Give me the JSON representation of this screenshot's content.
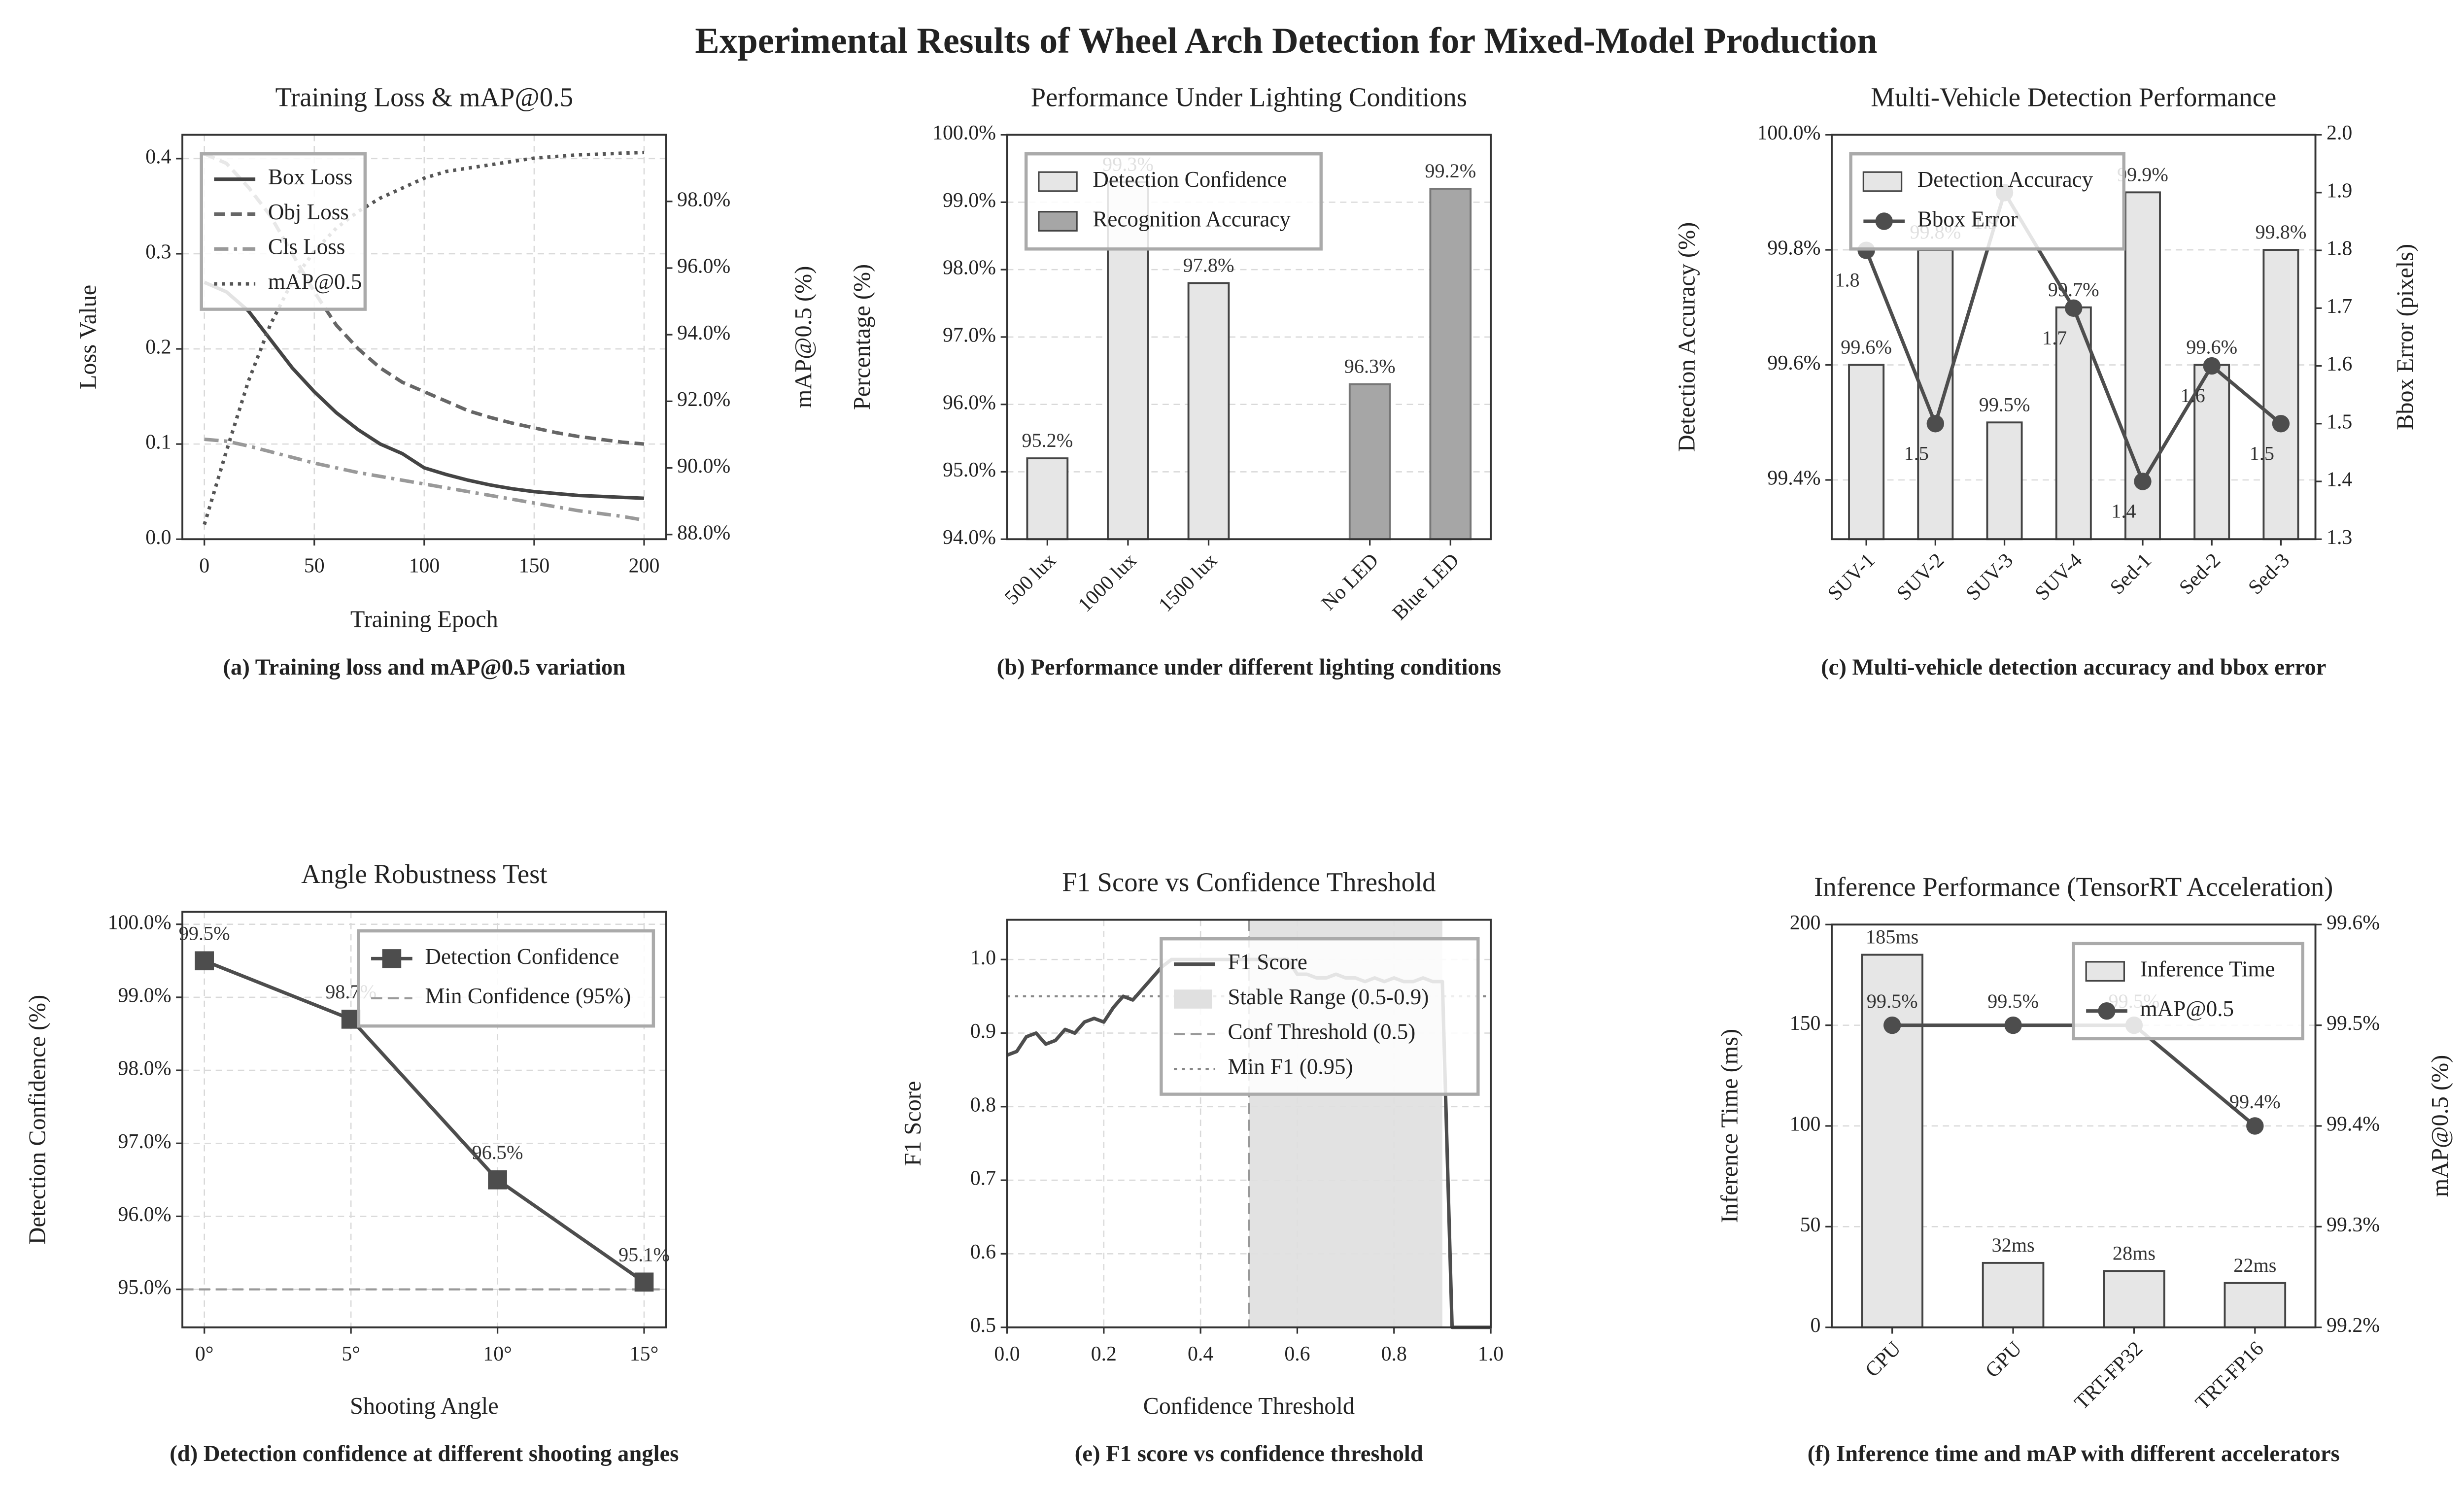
{
  "title": "Experimental Results of Wheel Arch Detection for Mixed-Model Production",
  "chart_data": [
    {
      "type": "line",
      "title": "Training Loss & mAP@0.5",
      "caption": "(a) Training loss and mAP@0.5 variation",
      "xlabel": "Training Epoch",
      "ylabel": "Loss Value",
      "y2label": "mAP@0.5 (%)",
      "x": [
        0,
        10,
        20,
        30,
        40,
        50,
        60,
        70,
        80,
        90,
        100,
        110,
        120,
        130,
        140,
        150,
        160,
        170,
        180,
        190,
        200
      ],
      "xlim": [
        -10,
        210
      ],
      "xticks": [
        0,
        50,
        100,
        150,
        200
      ],
      "ylim": [
        0,
        0.425
      ],
      "yticks": [
        {
          "value": 0,
          "label": "0.0"
        },
        0.1,
        0.2,
        0.3,
        0.4
      ],
      "y2lim": [
        87.86,
        100
      ],
      "y2ticks": [
        {
          "value": 88,
          "label": "88.0%"
        },
        {
          "value": 90,
          "label": "90.0%"
        },
        {
          "value": 92,
          "label": "92.0%"
        },
        {
          "value": 94,
          "label": "94.0%"
        },
        {
          "value": 96,
          "label": "96.0%"
        },
        {
          "value": 98,
          "label": "98.0%"
        }
      ],
      "grid": true,
      "legend": "upper left",
      "series": [
        {
          "name": "Box Loss",
          "color": "#444444",
          "linestyle": "solid",
          "values": [
            0.27,
            0.26,
            0.24,
            0.21,
            0.18,
            0.155,
            0.133,
            0.115,
            0.1,
            0.09,
            0.075,
            0.068,
            0.062,
            0.057,
            0.053,
            0.05,
            0.048,
            0.046,
            0.045,
            0.044,
            0.043
          ]
        },
        {
          "name": "Obj Loss",
          "color": "#666666",
          "linestyle": "dashed",
          "values": [
            0.405,
            0.395,
            0.37,
            0.34,
            0.3,
            0.26,
            0.225,
            0.2,
            0.18,
            0.165,
            0.155,
            0.145,
            0.135,
            0.128,
            0.122,
            0.117,
            0.112,
            0.108,
            0.105,
            0.102,
            0.1
          ]
        },
        {
          "name": "Cls Loss",
          "color": "#999999",
          "linestyle": "dashdot",
          "values": [
            0.105,
            0.103,
            0.098,
            0.092,
            0.086,
            0.08,
            0.075,
            0.07,
            0.066,
            0.062,
            0.058,
            0.054,
            0.05,
            0.046,
            0.042,
            0.038,
            0.034,
            0.03,
            0.027,
            0.024,
            0.02
          ]
        },
        {
          "name": "mAP@0.5",
          "color": "#555555",
          "linestyle": "dotted",
          "axis": "y2",
          "values": [
            88.3,
            90.5,
            92.6,
            94.3,
            95.6,
            96.5,
            97.2,
            97.7,
            98.1,
            98.4,
            98.7,
            98.9,
            99.0,
            99.1,
            99.2,
            99.3,
            99.35,
            99.4,
            99.42,
            99.45,
            99.47
          ]
        }
      ]
    },
    {
      "type": "bar",
      "title": "Performance Under Lighting Conditions",
      "caption": "(b) Performance under different lighting conditions",
      "ylabel": "Percentage (%)",
      "categories": [
        "500 lux",
        "1000 lux",
        "1500 lux",
        null,
        "No LED",
        "Blue LED"
      ],
      "ylim": [
        94,
        100
      ],
      "yticks": [
        {
          "value": 94,
          "label": "94.0%"
        },
        {
          "value": 95,
          "label": "95.0%"
        },
        {
          "value": 96,
          "label": "96.0%"
        },
        {
          "value": 97,
          "label": "97.0%"
        },
        {
          "value": 98,
          "label": "98.0%"
        },
        {
          "value": 99,
          "label": "99.0%"
        },
        {
          "value": 100,
          "label": "100.0%"
        }
      ],
      "grid": true,
      "legend": "upper left",
      "series": [
        {
          "name": "Detection Confidence",
          "color": "#e6e6e6",
          "values": [
            95.2,
            99.3,
            97.8,
            null,
            null,
            null
          ],
          "value_labels": [
            "95.2%",
            "99.3%",
            "97.8%",
            null,
            null,
            null
          ]
        },
        {
          "name": "Recognition Accuracy",
          "color": "#a6a6a6",
          "values": [
            null,
            null,
            null,
            null,
            96.3,
            99.2
          ],
          "value_labels": [
            null,
            null,
            null,
            null,
            "96.3%",
            "99.2%"
          ]
        }
      ]
    },
    {
      "type": "bar",
      "title": "Multi-Vehicle Detection Performance",
      "caption": "(c) Multi-vehicle detection accuracy and bbox error",
      "ylabel": "Detection Accuracy (%)",
      "y2label": "Bbox Error (pixels)",
      "categories": [
        "SUV-1",
        "SUV-2",
        "SUV-3",
        "SUV-4",
        "Sed-1",
        "Sed-2",
        "Sed-3"
      ],
      "ylim": [
        99.297,
        100
      ],
      "yticks": [
        {
          "value": 99.4,
          "label": "99.4%"
        },
        {
          "value": 99.6,
          "label": "99.6%"
        },
        {
          "value": 99.8,
          "label": "99.8%"
        },
        {
          "value": 100,
          "label": "100.0%"
        }
      ],
      "y2lim": [
        1.3,
        2.0
      ],
      "y2ticks": [
        1.3,
        1.4,
        1.5,
        1.6,
        1.7,
        1.8,
        1.9,
        {
          "value": 2,
          "label": "2.0"
        }
      ],
      "grid": true,
      "legend": "upper left",
      "series": [
        {
          "name": "Detection Accuracy",
          "color": "#e6e6e6",
          "values": [
            99.6,
            99.8,
            99.5,
            99.7,
            99.9,
            99.6,
            99.8
          ],
          "value_labels": [
            "99.6%",
            "99.8%",
            "99.5%",
            "99.7%",
            "99.9%",
            "99.6%",
            "99.8%"
          ]
        },
        {
          "name": "Bbox Error",
          "type": "line",
          "axis": "y2",
          "color": "#4d4d4d",
          "marker": "o",
          "linestyle": "solid",
          "data_labels": true,
          "values": [
            1.8,
            1.5,
            1.9,
            1.7,
            1.4,
            1.6,
            1.5
          ]
        }
      ]
    },
    {
      "type": "line",
      "title": "Angle Robustness Test",
      "caption": "(d) Detection confidence at different shooting angles",
      "xlabel": "Shooting Angle",
      "ylabel": "Detection Confidence (%)",
      "categories": [
        "0°",
        "5°",
        "10°",
        "15°"
      ],
      "ylim": [
        94.48,
        100.17
      ],
      "yticks": [
        {
          "value": 95,
          "label": "95.0%"
        },
        {
          "value": 96,
          "label": "96.0%"
        },
        {
          "value": 97,
          "label": "97.0%"
        },
        {
          "value": 98,
          "label": "98.0%"
        },
        {
          "value": 99,
          "label": "99.0%"
        },
        {
          "value": 100,
          "label": "100.0%"
        }
      ],
      "grid": true,
      "legend": "upper right",
      "series": [
        {
          "name": "Detection Confidence",
          "color": "#4d4d4d",
          "marker": "s",
          "linestyle": "solid",
          "values": [
            99.5,
            98.7,
            96.5,
            95.1
          ],
          "value_labels": [
            "99.5%",
            "98.7%",
            "96.5%",
            "95.1%"
          ]
        }
      ],
      "reference_lines": [
        {
          "name": "Min Confidence (95%)",
          "orientation": "h",
          "value": 95,
          "color": "#999999",
          "linestyle": "dashed"
        }
      ]
    },
    {
      "type": "line",
      "title": "F1 Score vs Confidence Threshold",
      "caption": "(e) F1 score vs confidence threshold",
      "xlabel": "Confidence Threshold",
      "ylabel": "F1 Score",
      "x": [
        0,
        0.02,
        0.04,
        0.06,
        0.08,
        0.1,
        0.12,
        0.14,
        0.16,
        0.18,
        0.2,
        0.22,
        0.24,
        0.26,
        0.28,
        0.3,
        0.32,
        0.34,
        0.36,
        0.38,
        0.4,
        0.42,
        0.44,
        0.46,
        0.48,
        0.5,
        0.52,
        0.54,
        0.56,
        0.58,
        0.6,
        0.62,
        0.64,
        0.66,
        0.68,
        0.7,
        0.72,
        0.74,
        0.76,
        0.78,
        0.8,
        0.82,
        0.84,
        0.86,
        0.88,
        0.9,
        0.92,
        0.94,
        0.96,
        0.98,
        1
      ],
      "xlim": [
        0,
        1
      ],
      "xticks": [
        {
          "value": 0,
          "label": "0.0"
        },
        0.2,
        0.4,
        0.6,
        0.8,
        {
          "value": 1,
          "label": "1.0"
        }
      ],
      "ylim": [
        0.5,
        1.054
      ],
      "yticks": [
        0.5,
        0.6,
        0.7,
        0.8,
        0.9,
        {
          "value": 1,
          "label": "1.0"
        }
      ],
      "grid": true,
      "legend": "upper right",
      "series": [
        {
          "name": "F1 Score",
          "color": "#4d4d4d",
          "linestyle": "solid",
          "values": [
            0.87,
            0.875,
            0.895,
            0.9,
            0.885,
            0.89,
            0.905,
            0.9,
            0.915,
            0.92,
            0.915,
            0.935,
            0.95,
            0.945,
            0.96,
            0.975,
            0.99,
            1,
            1,
            1,
            1,
            1,
            1,
            1,
            1,
            1,
            1,
            1,
            1,
            1,
            0.98,
            0.98,
            0.975,
            0.975,
            0.98,
            0.975,
            0.975,
            0.97,
            0.975,
            0.97,
            0.975,
            0.97,
            0.97,
            0.975,
            0.97,
            0.97,
            0.5,
            0.5,
            0.5,
            0.5,
            0.5
          ]
        }
      ],
      "spans": [
        {
          "name": "Stable Range (0.5-0.9)",
          "from": 0.5,
          "to": 0.9,
          "color": "#e0e0e0"
        }
      ],
      "reference_lines": [
        {
          "name": "Conf Threshold (0.5)",
          "orientation": "v",
          "value": 0.5,
          "color": "#999999",
          "linestyle": "dashed"
        },
        {
          "name": "Min F1 (0.95)",
          "orientation": "h",
          "value": 0.95,
          "color": "#888888",
          "linestyle": "dotted"
        }
      ]
    },
    {
      "type": "bar",
      "title": "Inference Performance (TensorRT Acceleration)",
      "caption": "(f) Inference time and mAP with different accelerators",
      "ylabel": "Inference Time (ms)",
      "y2label": "mAP@0.5 (%)",
      "categories": [
        "CPU",
        "GPU",
        "TRT-FP32",
        "TRT-FP16"
      ],
      "ylim": [
        0,
        200
      ],
      "yticks": [
        0,
        50,
        100,
        150,
        200
      ],
      "y2lim": [
        99.2,
        99.6
      ],
      "y2ticks": [
        {
          "value": 99.2,
          "label": "99.2%"
        },
        {
          "value": 99.3,
          "label": "99.3%"
        },
        {
          "value": 99.4,
          "label": "99.4%"
        },
        {
          "value": 99.5,
          "label": "99.5%"
        },
        {
          "value": 99.6,
          "label": "99.6%"
        }
      ],
      "grid": true,
      "legend": "upper right",
      "series": [
        {
          "name": "Inference Time",
          "color": "#e6e6e6",
          "values": [
            185,
            32,
            28,
            22
          ],
          "value_labels": [
            "185ms",
            "32ms",
            "28ms",
            "22ms"
          ]
        },
        {
          "name": "mAP@0.5",
          "type": "line",
          "axis": "y2",
          "color": "#4d4d4d",
          "marker": "o",
          "linestyle": "solid",
          "values": [
            99.5,
            99.5,
            99.5,
            99.4
          ],
          "value_labels": [
            "99.5%",
            "99.5%",
            "99.5%",
            "99.4%"
          ]
        }
      ]
    }
  ]
}
